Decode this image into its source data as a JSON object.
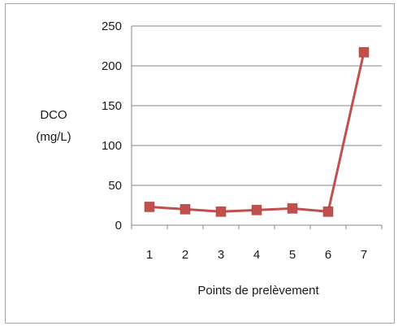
{
  "chart_data": {
    "type": "line",
    "title": "",
    "xlabel": "Points de prelèvement",
    "ylabel_lines": [
      "DCO",
      "(mg/L)"
    ],
    "x": [
      "1",
      "2",
      "3",
      "4",
      "5",
      "6",
      "7"
    ],
    "series": [
      {
        "values": [
          23,
          20,
          17,
          19,
          21,
          17,
          217
        ]
      }
    ],
    "yticks": [
      "0",
      "50",
      "100",
      "150",
      "200",
      "250"
    ],
    "ylim": [
      0,
      250
    ],
    "grid": "horizontal",
    "legend": "none",
    "colors": {
      "series": "#c0504d",
      "marker": "#c0504d",
      "grid": "#868686",
      "axis": "#868686"
    }
  }
}
